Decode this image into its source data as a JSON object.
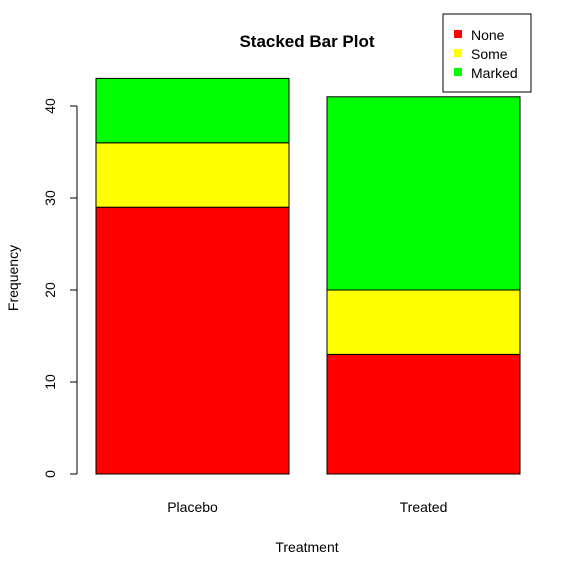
{
  "chart_data": {
    "type": "bar",
    "stacked": true,
    "title": "Stacked Bar Plot",
    "xlabel": "Treatment",
    "ylabel": "Frequency",
    "categories": [
      "Placebo",
      "Treated"
    ],
    "series": [
      {
        "name": "None",
        "values": [
          29,
          13
        ],
        "color": "#ff0000"
      },
      {
        "name": "Some",
        "values": [
          7,
          7
        ],
        "color": "#ffff00"
      },
      {
        "name": "Marked",
        "values": [
          7,
          21
        ],
        "color": "#00ff00"
      }
    ],
    "ylim": [
      0,
      43
    ],
    "yticks": [
      0,
      10,
      20,
      30,
      40
    ],
    "grid": false,
    "legend": {
      "position": "top-right"
    }
  }
}
